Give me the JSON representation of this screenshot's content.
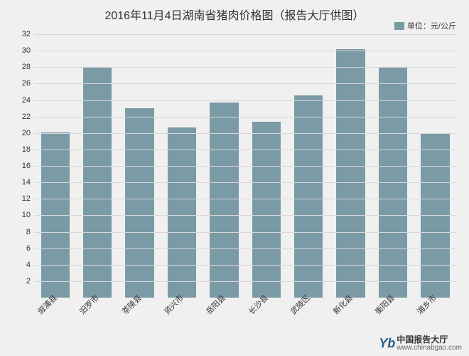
{
  "chart": {
    "type": "bar",
    "title": "2016年11月4日湖南省猪肉价格图（报告大厅供图）",
    "title_fontsize": 16,
    "title_color": "#333333",
    "legend_label": "单位：元/公斤",
    "legend_fontsize": 11,
    "categories": [
      "溆浦县",
      "汨罗市",
      "茶陵县",
      "资兴市",
      "岳阳县",
      "长沙县",
      "武陵区",
      "新化县",
      "衡阳县",
      "湘乡市"
    ],
    "values": [
      20.1,
      28.0,
      23.0,
      20.7,
      23.7,
      21.4,
      24.6,
      30.2,
      28.0,
      20.0
    ],
    "bar_color": "#7a9aa6",
    "background_color": "#f0f0f0",
    "grid_color": "#d8d8d8",
    "y_start": 0,
    "ylim": [
      0,
      32
    ],
    "ytick_start": 2,
    "ytick_step": 2,
    "ytick_end": 32,
    "bar_width": 0.68,
    "axis_label_fontsize": 11,
    "axis_label_color": "#333333",
    "xlabel_rotation": -45
  },
  "watermark": {
    "logo_text": "Yb",
    "logo_color": "#2a5f8a",
    "cn_text": "中国报告大厅",
    "url_text": "www.chinabgao.com"
  }
}
